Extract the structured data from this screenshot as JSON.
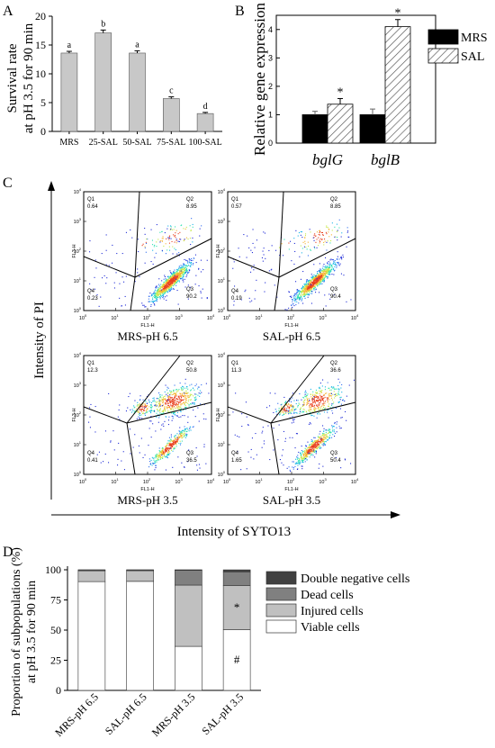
{
  "chart_data": [
    {
      "panel": "A",
      "type": "bar",
      "ylabel_lines": [
        "Survival rate",
        "at pH 3.5 for 90 min"
      ],
      "categories": [
        "MRS",
        "25-SAL",
        "50-SAL",
        "75-SAL",
        "100-SAL"
      ],
      "values": [
        13.6,
        17.1,
        13.6,
        5.7,
        3.1
      ],
      "errors": [
        0.3,
        0.5,
        0.4,
        0.3,
        0.2
      ],
      "significance_letters": [
        "a",
        "b",
        "a",
        "c",
        "d"
      ],
      "ylim": [
        0,
        20
      ],
      "yticks": [
        0,
        5,
        10,
        15,
        20
      ],
      "bar_color": "#c8c8c8"
    },
    {
      "panel": "B",
      "type": "bar",
      "ylabel": "Relative gene expression",
      "categories": [
        "bglG",
        "bglB"
      ],
      "series": [
        {
          "name": "MRS",
          "values": [
            1.0,
            1.0
          ],
          "errors": [
            0.12,
            0.2
          ],
          "color": "#000000"
        },
        {
          "name": "SAL",
          "values": [
            1.37,
            4.1
          ],
          "errors": [
            0.2,
            0.25
          ],
          "color": "#ffffff",
          "pattern": "hatch"
        }
      ],
      "significance": [
        "*",
        "*"
      ],
      "ylim": [
        0,
        4.5
      ],
      "yticks": [
        0,
        1,
        2,
        3,
        4
      ],
      "legend_position": "top-right"
    },
    {
      "panel": "C",
      "type": "scatter",
      "xlabel": "Intensity of SYTO13",
      "ylabel": "Intensity of PI",
      "plot_axis_x": "FL1-H",
      "plot_axis_y": "FL3-H",
      "tick_exponents": [
        "0",
        "1",
        "2",
        "3",
        "4"
      ],
      "plots": [
        {
          "label": "MRS-pH 6.5",
          "quadrants": {
            "Q1": "0.64",
            "Q2": "8.95",
            "Q3": "90.2",
            "Q4": "0.23"
          }
        },
        {
          "label": "SAL-pH 6.5",
          "quadrants": {
            "Q1": "0.57",
            "Q2": "8.85",
            "Q3": "90.4",
            "Q4": "0.19"
          }
        },
        {
          "label": "MRS-pH 3.5",
          "quadrants": {
            "Q1": "12.3",
            "Q2": "50.8",
            "Q3": "36.5",
            "Q4": "0.41"
          }
        },
        {
          "label": "SAL-pH 3.5",
          "quadrants": {
            "Q1": "11.3",
            "Q2": "36.6",
            "Q3": "50.4",
            "Q4": "1.65"
          }
        }
      ]
    },
    {
      "panel": "D",
      "type": "bar",
      "stacked": true,
      "ylabel_lines": [
        "Proportion of subpopulations (%)",
        "at pH 3.5 for 90 min"
      ],
      "categories": [
        "MRS-pH 6.5",
        "SAL-pH 6.5",
        "MRS-pH 3.5",
        "SAL-pH 3.5"
      ],
      "series": [
        {
          "name": "Viable cells",
          "values": [
            90.2,
            90.4,
            36.5,
            50.4
          ],
          "color": "#ffffff"
        },
        {
          "name": "Injured cells",
          "values": [
            8.95,
            8.85,
            50.8,
            36.6
          ],
          "color": "#c0c0c0"
        },
        {
          "name": "Dead cells",
          "values": [
            0.64,
            0.57,
            12.3,
            11.3
          ],
          "color": "#808080"
        },
        {
          "name": "Double negative cells",
          "values": [
            0.23,
            0.19,
            0.41,
            1.65
          ],
          "color": "#404040"
        }
      ],
      "annotations": [
        {
          "category": "SAL-pH 3.5",
          "series": "Injured cells",
          "text": "*"
        },
        {
          "category": "SAL-pH 3.5",
          "series": "Viable cells",
          "text": "#"
        }
      ],
      "ylim": [
        0,
        100
      ],
      "yticks": [
        0,
        25,
        50,
        75,
        100
      ],
      "legend_position": "right"
    }
  ],
  "panel_letters": {
    "a": "A",
    "b": "B",
    "c": "C",
    "d": "D"
  }
}
